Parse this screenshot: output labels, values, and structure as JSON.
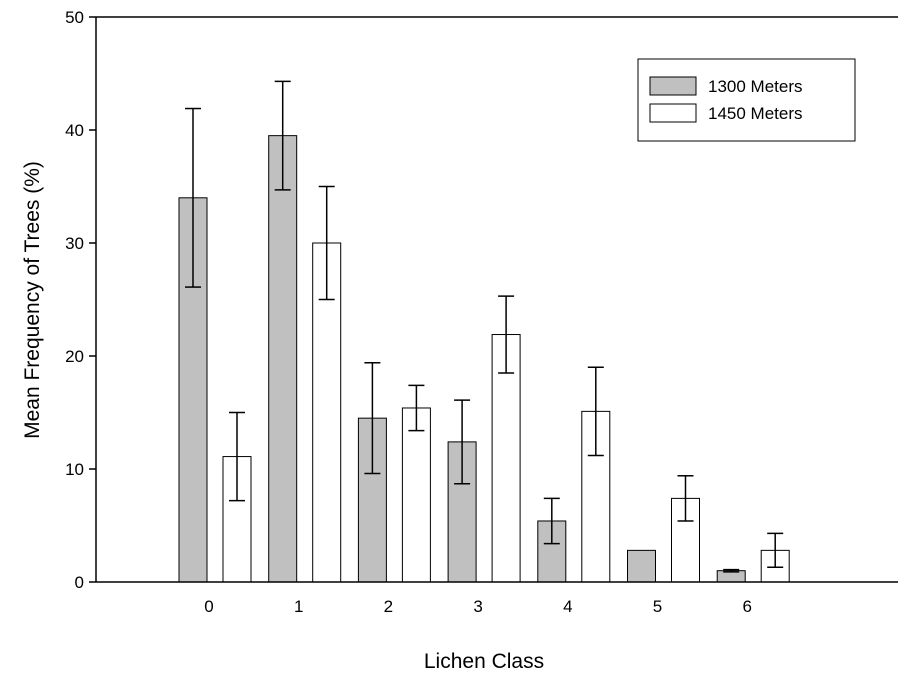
{
  "chart_data": {
    "type": "bar",
    "title": "",
    "xlabel": "Lichen Class",
    "ylabel": "Mean Frequency of Trees (%)",
    "categories": [
      "0",
      "1",
      "2",
      "3",
      "4",
      "5",
      "6"
    ],
    "ylim": [
      0,
      50
    ],
    "yticks": [
      0,
      10,
      20,
      30,
      40,
      50
    ],
    "grid": false,
    "legend_position": "top-right",
    "series": [
      {
        "name": "1300 Meters",
        "color": "#c0c0c0",
        "values": [
          34.0,
          39.5,
          14.5,
          12.4,
          5.4,
          2.8,
          1.0
        ],
        "error": [
          7.9,
          4.8,
          4.9,
          3.7,
          2.0,
          0.0,
          0.1
        ]
      },
      {
        "name": "1450 Meters",
        "color": "#ffffff",
        "values": [
          11.1,
          30.0,
          15.4,
          21.9,
          15.1,
          7.4,
          2.8
        ],
        "error": [
          3.9,
          5.0,
          2.0,
          3.4,
          3.9,
          2.0,
          1.5
        ]
      }
    ]
  }
}
